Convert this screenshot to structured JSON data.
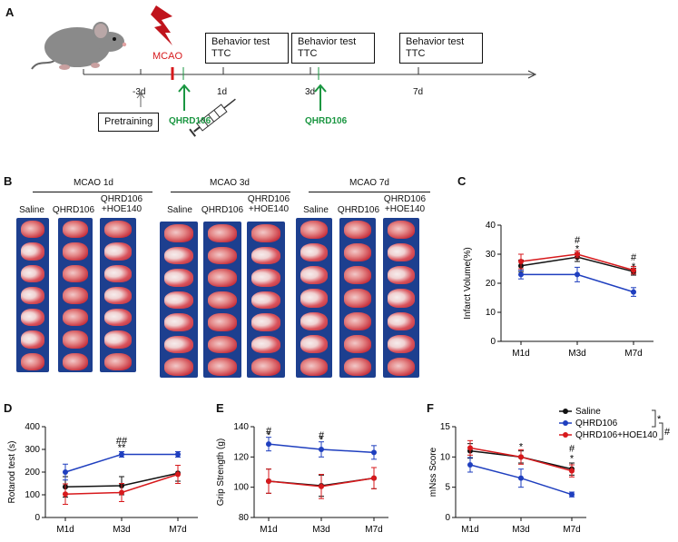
{
  "panel_letters": {
    "a": "A",
    "b": "B",
    "c": "C",
    "d": "D",
    "e": "E",
    "f": "F"
  },
  "timeline": {
    "mcao": "MCAO",
    "pretraining": "Pretraining",
    "qhrd106_first": "QHRD106",
    "qhrd106_second": "QHRD106",
    "behavior_test": "Behavior test",
    "ttc": "TTC",
    "days": {
      "minus3": "-3d",
      "d1": "1d",
      "d3": "3d",
      "d7": "7d"
    }
  },
  "panel_b": {
    "groups": [
      {
        "title": "MCAO 1d",
        "cols": [
          "Saline",
          "QHRD106",
          "QHRD106\n+HOE140"
        ]
      },
      {
        "title": "MCAO 3d",
        "cols": [
          "Saline",
          "QHRD106",
          "QHRD106\n+HOE140"
        ]
      },
      {
        "title": "MCAO 7d",
        "cols": [
          "Saline",
          "QHRD106",
          "QHRD106\n+HOE140"
        ]
      }
    ]
  },
  "legend": {
    "saline": "Saline",
    "qhrd106": "QHRD106",
    "combo": "QHRD106+HOE140",
    "sig_star": "*",
    "sig_hash": "#"
  },
  "colors": {
    "saline": "#111111",
    "qhrd106": "#1f3fbf",
    "combo": "#d7191c",
    "brain_bg": "#1d3f8f"
  },
  "chart_data": [
    {
      "id": "C",
      "type": "line",
      "categories": [
        "M1d",
        "M3d",
        "M7d"
      ],
      "ylabel": "Infarct Volume(%)",
      "ylim": [
        0,
        40
      ],
      "yticks": [
        0,
        10,
        20,
        30,
        40
      ],
      "series": [
        {
          "name": "Saline",
          "color": "#111111",
          "values": [
            26,
            29,
            24
          ],
          "err": [
            2,
            1.5,
            1.2
          ]
        },
        {
          "name": "QHRD106",
          "color": "#1f3fbf",
          "values": [
            23,
            23,
            17
          ],
          "err": [
            1.5,
            2.5,
            1.5
          ]
        },
        {
          "name": "QHRD106+HOE140",
          "color": "#d7191c",
          "values": [
            27.5,
            30,
            24.5
          ],
          "err": [
            2.5,
            1.2,
            1.3
          ]
        }
      ],
      "annotations": [
        {
          "x": 1,
          "y": 32,
          "text": "*"
        },
        {
          "x": 1,
          "y": 35,
          "text": "#"
        },
        {
          "x": 2,
          "y": 26,
          "text": "*"
        },
        {
          "x": 2,
          "y": 29,
          "text": "#"
        }
      ]
    },
    {
      "id": "D",
      "type": "line",
      "categories": [
        "M1d",
        "M3d",
        "M7d"
      ],
      "ylabel": "Rotarod  test (s)",
      "ylim": [
        0,
        400
      ],
      "yticks": [
        0,
        100,
        200,
        300,
        400
      ],
      "series": [
        {
          "name": "Saline",
          "color": "#111111",
          "values": [
            135,
            140,
            195
          ],
          "err": [
            45,
            40,
            35
          ]
        },
        {
          "name": "QHRD106",
          "color": "#1f3fbf",
          "values": [
            200,
            278,
            278
          ],
          "err": [
            35,
            12,
            12
          ]
        },
        {
          "name": "QHRD106+HOE140",
          "color": "#d7191c",
          "values": [
            103,
            110,
            190
          ],
          "err": [
            45,
            40,
            40
          ]
        }
      ],
      "annotations": [
        {
          "x": 1,
          "y": 310,
          "text": "**"
        },
        {
          "x": 1,
          "y": 340,
          "text": "##"
        }
      ]
    },
    {
      "id": "E",
      "type": "line",
      "categories": [
        "M1d",
        "M3d",
        "M7d"
      ],
      "ylabel": "Grip Strength (g)",
      "ylim": [
        80,
        140
      ],
      "yticks": [
        80,
        100,
        120,
        140
      ],
      "series": [
        {
          "name": "Saline",
          "color": "#111111",
          "values": [
            104,
            101,
            106
          ],
          "err": [
            8,
            7,
            7
          ]
        },
        {
          "name": "QHRD106",
          "color": "#1f3fbf",
          "values": [
            128.5,
            125,
            123
          ],
          "err": [
            4.5,
            5,
            4.5
          ]
        },
        {
          "name": "QHRD106+HOE140",
          "color": "#d7191c",
          "values": [
            104,
            100.5,
            106
          ],
          "err": [
            8,
            8,
            7
          ]
        }
      ],
      "annotations": [
        {
          "x": 0,
          "y": 134.5,
          "text": "*"
        },
        {
          "x": 0,
          "y": 137.5,
          "text": "#"
        },
        {
          "x": 1,
          "y": 131.5,
          "text": "*"
        },
        {
          "x": 1,
          "y": 134.5,
          "text": "#"
        }
      ]
    },
    {
      "id": "F",
      "type": "line",
      "categories": [
        "M1d",
        "M3d",
        "M7d"
      ],
      "ylabel": "mNss Score",
      "ylim": [
        0,
        15
      ],
      "yticks": [
        0,
        5,
        10,
        15
      ],
      "series": [
        {
          "name": "Saline",
          "color": "#111111",
          "values": [
            11,
            10,
            8
          ],
          "err": [
            1.2,
            1,
            1
          ]
        },
        {
          "name": "QHRD106",
          "color": "#1f3fbf",
          "values": [
            8.7,
            6.5,
            3.8
          ],
          "err": [
            1.2,
            1.5,
            0.4
          ]
        },
        {
          "name": "QHRD106+HOE140",
          "color": "#d7191c",
          "values": [
            11.5,
            10,
            7.7
          ],
          "err": [
            1.2,
            1.2,
            1
          ]
        }
      ],
      "annotations": [
        {
          "x": 1,
          "y": 11.8,
          "text": "*"
        },
        {
          "x": 2,
          "y": 9.8,
          "text": "*"
        },
        {
          "x": 2,
          "y": 11.5,
          "text": "#"
        }
      ]
    }
  ]
}
